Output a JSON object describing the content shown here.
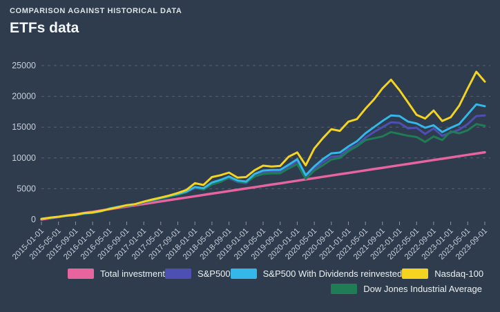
{
  "header": {
    "overline": "COMPARISON AGAINST HISTORICAL DATA",
    "title": "ETFs data"
  },
  "ui_colors": {
    "background": "#2e3c4d",
    "gridline": "#566275",
    "axis_text": "#c7ced8",
    "legend_text": "#edf1f5"
  },
  "chart_data": {
    "type": "line",
    "title": "ETFs data",
    "xlabel": "",
    "ylabel": "",
    "ylim": [
      0,
      25000
    ],
    "y_ticks": [
      0,
      5000,
      10000,
      15000,
      20000,
      25000
    ],
    "grid": "horizontal-dashed",
    "legend_position": "bottom",
    "x_tick_every": 2,
    "x": [
      "2015-01-01",
      "2015-03-01",
      "2015-05-01",
      "2015-07-01",
      "2015-09-01",
      "2015-11-01",
      "2016-01-01",
      "2016-03-01",
      "2016-05-01",
      "2016-07-01",
      "2016-09-01",
      "2016-11-01",
      "2017-01-01",
      "2017-03-01",
      "2017-05-01",
      "2017-07-01",
      "2017-09-01",
      "2017-11-01",
      "2018-01-01",
      "2018-03-01",
      "2018-05-01",
      "2018-07-01",
      "2018-09-01",
      "2018-11-01",
      "2019-01-01",
      "2019-03-01",
      "2019-05-01",
      "2019-07-01",
      "2019-09-01",
      "2019-11-01",
      "2020-01-01",
      "2020-03-01",
      "2020-05-01",
      "2020-07-01",
      "2020-09-01",
      "2020-11-01",
      "2021-01-01",
      "2021-03-01",
      "2021-05-01",
      "2021-07-01",
      "2021-09-01",
      "2021-11-01",
      "2022-01-01",
      "2022-03-01",
      "2022-05-01",
      "2022-07-01",
      "2022-09-01",
      "2022-11-01",
      "2023-01-01",
      "2023-03-01",
      "2023-05-01",
      "2023-07-01",
      "2023-09-01"
    ],
    "series": [
      {
        "name": "Total investment",
        "color": "#e8649f",
        "values": [
          0,
          210,
          420,
          630,
          840,
          1050,
          1260,
          1470,
          1680,
          1890,
          2100,
          2310,
          2520,
          2730,
          2940,
          3150,
          3360,
          3570,
          3780,
          3990,
          4200,
          4410,
          4620,
          4830,
          5040,
          5250,
          5460,
          5670,
          5880,
          6090,
          6300,
          6510,
          6720,
          6930,
          7140,
          7350,
          7560,
          7770,
          7980,
          8190,
          8400,
          8610,
          8820,
          9030,
          9240,
          9450,
          9660,
          9870,
          10080,
          10290,
          10500,
          10710,
          10920
        ]
      },
      {
        "name": "S&P500",
        "color": "#4e4fb3",
        "values": [
          100,
          280,
          430,
          610,
          720,
          980,
          1080,
          1320,
          1750,
          2010,
          2250,
          2430,
          2800,
          3080,
          3400,
          3720,
          4030,
          4400,
          5100,
          4900,
          5800,
          6200,
          6720,
          6100,
          5900,
          7100,
          7620,
          7700,
          7700,
          8500,
          9500,
          6900,
          8180,
          9300,
          10190,
          10300,
          11420,
          12100,
          13300,
          14200,
          15000,
          15800,
          15700,
          14800,
          14900,
          13900,
          14800,
          13600,
          14100,
          14600,
          15500,
          16800,
          16900
        ]
      },
      {
        "name": "S&P500 With Dividends reinvested",
        "color": "#34b7e9",
        "values": [
          100,
          285,
          440,
          625,
          740,
          1000,
          1105,
          1355,
          1790,
          2060,
          2310,
          2500,
          2880,
          3170,
          3500,
          3840,
          4160,
          4550,
          5280,
          5080,
          6010,
          6430,
          6980,
          6350,
          6150,
          7400,
          7960,
          8050,
          8060,
          8900,
          9800,
          7200,
          8620,
          9800,
          10750,
          10880,
          11870,
          12700,
          14000,
          15000,
          16000,
          16900,
          16800,
          15900,
          15600,
          14900,
          15300,
          14200,
          14900,
          15500,
          17100,
          18700,
          18400
        ]
      },
      {
        "name": "Nasdaq-100",
        "color": "#f4d321",
        "values": [
          100,
          300,
          450,
          650,
          760,
          1050,
          1150,
          1400,
          1700,
          2000,
          2330,
          2500,
          2900,
          3250,
          3570,
          3900,
          4300,
          4800,
          5900,
          5600,
          6900,
          7200,
          7620,
          6800,
          6900,
          8000,
          8740,
          8600,
          8700,
          10200,
          10900,
          8800,
          11540,
          13200,
          14670,
          14400,
          15900,
          16300,
          18000,
          19500,
          21300,
          22700,
          21000,
          19000,
          17000,
          16400,
          17700,
          16000,
          16600,
          18500,
          21300,
          24000,
          22400
        ]
      },
      {
        "name": "Dow Jones Industrial Average",
        "color": "#1f7c54",
        "values": [
          100,
          270,
          420,
          590,
          700,
          950,
          1060,
          1310,
          1730,
          1990,
          2230,
          2450,
          2800,
          3060,
          3380,
          3700,
          4000,
          4430,
          5200,
          4850,
          5700,
          6100,
          6830,
          6200,
          6000,
          7000,
          7400,
          7500,
          7500,
          8300,
          9000,
          6600,
          7960,
          8800,
          9740,
          10000,
          11090,
          11900,
          12900,
          13200,
          13500,
          14200,
          13900,
          13600,
          13400,
          12600,
          13500,
          12900,
          14300,
          14000,
          14500,
          15500,
          15200
        ]
      }
    ]
  }
}
